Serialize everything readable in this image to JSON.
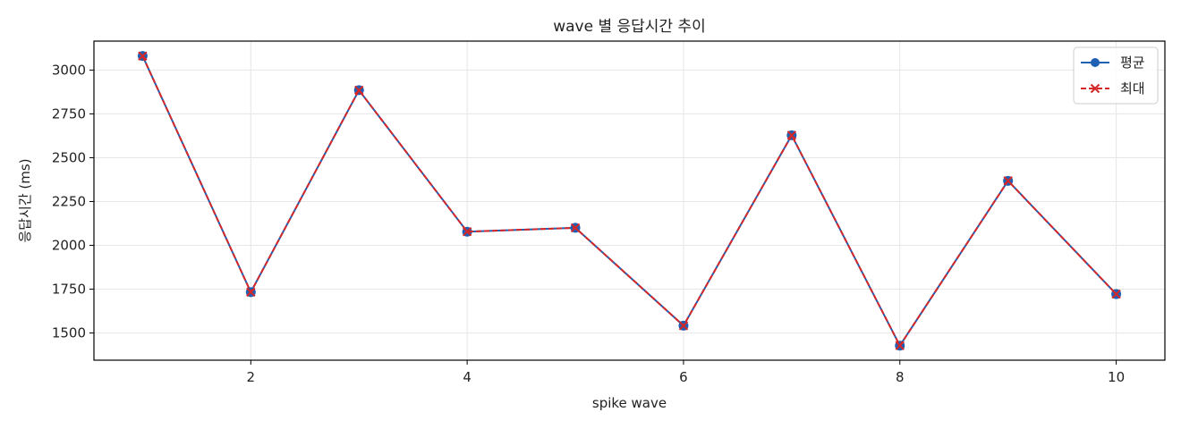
{
  "chart_data": {
    "type": "line",
    "title": "wave 별 응답시간 추이",
    "xlabel": "spike wave",
    "ylabel": "응답시간 (ms)",
    "x": [
      1,
      2,
      3,
      4,
      5,
      6,
      7,
      8,
      9,
      10
    ],
    "xlim": [
      0.55,
      10.45
    ],
    "ylim": [
      1345,
      3165
    ],
    "xticks": [
      2,
      4,
      6,
      8,
      10
    ],
    "yticks": [
      1500,
      1750,
      2000,
      2250,
      2500,
      2750,
      3000
    ],
    "grid": true,
    "legend_position": "top-right",
    "series": [
      {
        "name": "평균",
        "color": "#1f5fb4",
        "marker": "circle",
        "linestyle": "solid",
        "values": [
          3080,
          1733,
          2885,
          2078,
          2100,
          1542,
          2628,
          1428,
          2368,
          1722
        ]
      },
      {
        "name": "최대",
        "color": "#d62728",
        "marker": "x",
        "linestyle": "dashed",
        "values": [
          3080,
          1733,
          2885,
          2078,
          2100,
          1542,
          2628,
          1428,
          2368,
          1722
        ]
      }
    ]
  }
}
